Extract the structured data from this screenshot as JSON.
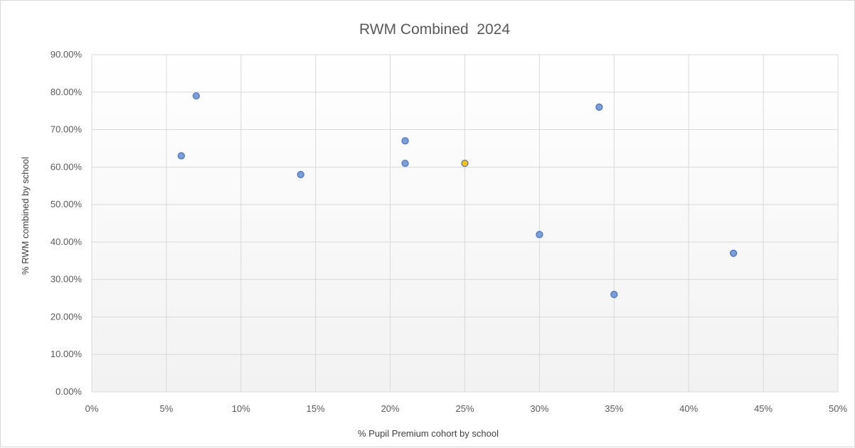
{
  "chart_data": {
    "type": "scatter",
    "title": "RWM Combined  2024",
    "xlabel": "% Pupil Premium cohort by school",
    "ylabel": "% RWM combined by school",
    "xlim": [
      0,
      50
    ],
    "ylim": [
      0,
      90
    ],
    "x_ticks": [
      0,
      5,
      10,
      15,
      20,
      25,
      30,
      35,
      40,
      45,
      50
    ],
    "x_tick_labels": [
      "0%",
      "5%",
      "10%",
      "15%",
      "20%",
      "25%",
      "30%",
      "35%",
      "40%",
      "45%",
      "50%"
    ],
    "y_ticks": [
      0,
      10,
      20,
      30,
      40,
      50,
      60,
      70,
      80,
      90
    ],
    "y_tick_labels": [
      "0.00%",
      "10.00%",
      "20.00%",
      "30.00%",
      "40.00%",
      "50.00%",
      "60.00%",
      "70.00%",
      "80.00%",
      "90.00%"
    ],
    "grid": true,
    "legend": "none",
    "point_color": "#7b9ed6",
    "point_edge_color": "#4472c4",
    "highlight_color": "#ffc000",
    "points": [
      {
        "x": 7,
        "y": 79
      },
      {
        "x": 6,
        "y": 63
      },
      {
        "x": 14,
        "y": 58
      },
      {
        "x": 21,
        "y": 67
      },
      {
        "x": 21,
        "y": 61
      },
      {
        "x": 25,
        "y": 61,
        "highlight": true
      },
      {
        "x": 30,
        "y": 42
      },
      {
        "x": 34,
        "y": 76
      },
      {
        "x": 35,
        "y": 26
      },
      {
        "x": 43,
        "y": 37
      }
    ]
  }
}
